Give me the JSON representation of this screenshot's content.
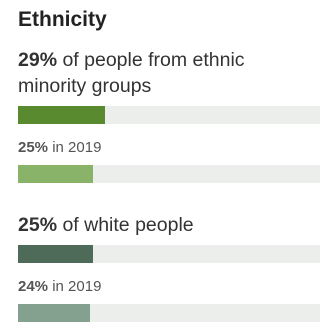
{
  "title": "Ethnicity",
  "chart_data": {
    "type": "bar",
    "categories": [
      "People from ethnic minority groups",
      "White people"
    ],
    "series": [
      {
        "name": "",
        "values": [
          29,
          25
        ]
      },
      {
        "name": "2019",
        "values": [
          25,
          24
        ]
      }
    ],
    "unit": "%"
  },
  "groups": [
    {
      "pct": "29%",
      "label": " of people from ethnic minority groups",
      "value": 29,
      "color": "#5a8a2f",
      "prior_pct": "25%",
      "prior_label": " in 2019",
      "prior_value": 25,
      "prior_color": "#8ab36a"
    },
    {
      "pct": "25%",
      "label": " of white people",
      "value": 25,
      "color": "#4d6b58",
      "prior_pct": "24%",
      "prior_label": " in 2019",
      "prior_value": 24,
      "prior_color": "#84a08e"
    }
  ],
  "scale_max": 100
}
